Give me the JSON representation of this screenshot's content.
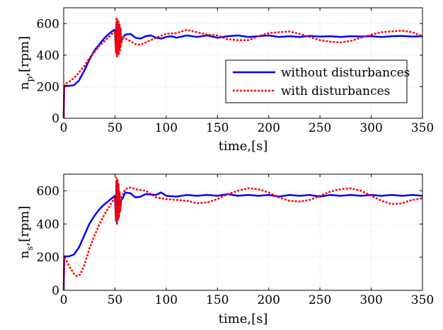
{
  "chart_data": [
    {
      "type": "line",
      "xlabel": "time,[s]",
      "ylabel": {
        "main": "n",
        "sub": "p",
        "rest": ",[rpm]"
      },
      "xlim": [
        0,
        350
      ],
      "ylim": [
        0,
        700
      ],
      "xticks": [
        0,
        50,
        100,
        150,
        200,
        250,
        300,
        350
      ],
      "yticks": [
        0,
        200,
        400,
        600
      ],
      "grid": true,
      "legend": {
        "position": "right",
        "entries": [
          "without disturbances",
          "with disturbances"
        ]
      },
      "series": [
        {
          "name": "without disturbances",
          "color": "#0000ff",
          "style": "solid",
          "x": [
            0,
            0.5,
            1,
            5,
            10,
            15,
            20,
            25,
            30,
            35,
            40,
            45,
            48,
            50,
            51,
            51.5,
            52,
            52.5,
            53,
            53.5,
            54,
            54.5,
            55,
            55.5,
            56,
            58,
            60,
            65,
            70,
            75,
            80,
            85,
            90,
            95,
            100,
            105,
            110,
            120,
            130,
            140,
            150,
            160,
            170,
            180,
            190,
            200,
            210,
            220,
            230,
            240,
            250,
            260,
            270,
            280,
            290,
            300,
            310,
            320,
            330,
            340,
            350
          ],
          "y": [
            0,
            200,
            205,
            205,
            210,
            240,
            300,
            370,
            430,
            470,
            510,
            540,
            555,
            560,
            430,
            600,
            420,
            610,
            430,
            590,
            440,
            580,
            460,
            560,
            490,
            510,
            530,
            535,
            510,
            505,
            520,
            525,
            510,
            505,
            515,
            520,
            510,
            525,
            515,
            525,
            510,
            520,
            525,
            515,
            520,
            525,
            515,
            520,
            515,
            522,
            518,
            520,
            515,
            520,
            518,
            520,
            515,
            520,
            522,
            518,
            520
          ]
        },
        {
          "name": "with disturbances",
          "color": "#ff0000",
          "style": "dotted",
          "x": [
            0,
            0.5,
            1,
            5,
            10,
            15,
            20,
            25,
            30,
            35,
            40,
            45,
            48,
            50,
            51,
            51.5,
            52,
            52.5,
            53,
            53.5,
            54,
            54.5,
            55,
            55.5,
            56,
            58,
            60,
            65,
            70,
            75,
            80,
            90,
            100,
            110,
            120,
            130,
            140,
            150,
            160,
            170,
            180,
            190,
            200,
            210,
            220,
            230,
            240,
            250,
            260,
            270,
            280,
            290,
            300,
            310,
            320,
            330,
            340,
            350
          ],
          "y": [
            0,
            210,
            215,
            230,
            255,
            290,
            330,
            380,
            420,
            460,
            490,
            520,
            540,
            550,
            410,
            640,
            390,
            630,
            400,
            620,
            410,
            600,
            430,
            570,
            460,
            520,
            505,
            490,
            470,
            465,
            480,
            510,
            535,
            540,
            560,
            545,
            530,
            525,
            500,
            495,
            495,
            520,
            540,
            545,
            550,
            535,
            515,
            495,
            485,
            480,
            490,
            510,
            530,
            545,
            550,
            555,
            545,
            520
          ]
        }
      ]
    },
    {
      "type": "line",
      "xlabel": "time,[s]",
      "ylabel": {
        "main": "n",
        "sub": "s",
        "rest": ",[rpm]"
      },
      "xlim": [
        0,
        350
      ],
      "ylim": [
        0,
        700
      ],
      "xticks": [
        0,
        50,
        100,
        150,
        200,
        250,
        300,
        350
      ],
      "yticks": [
        0,
        200,
        400,
        600
      ],
      "grid": true,
      "series": [
        {
          "name": "without disturbances",
          "color": "#0000ff",
          "style": "solid",
          "x": [
            0,
            0.5,
            1,
            5,
            10,
            15,
            20,
            25,
            30,
            35,
            40,
            45,
            48,
            50,
            51,
            51.5,
            52,
            52.5,
            53,
            53.5,
            54,
            54.5,
            55,
            56,
            58,
            60,
            65,
            70,
            75,
            80,
            90,
            95,
            100,
            110,
            120,
            130,
            140,
            150,
            160,
            170,
            180,
            190,
            200,
            210,
            220,
            230,
            240,
            250,
            260,
            270,
            280,
            290,
            300,
            310,
            320,
            330,
            340,
            350
          ],
          "y": [
            0,
            200,
            205,
            205,
            215,
            260,
            330,
            400,
            450,
            490,
            520,
            545,
            560,
            570,
            420,
            650,
            410,
            640,
            430,
            620,
            450,
            590,
            480,
            540,
            560,
            590,
            585,
            560,
            565,
            580,
            575,
            590,
            570,
            565,
            575,
            570,
            575,
            570,
            580,
            570,
            575,
            570,
            575,
            565,
            575,
            570,
            575,
            565,
            575,
            570,
            575,
            570,
            575,
            570,
            575,
            570,
            575,
            570
          ]
        },
        {
          "name": "with disturbances",
          "color": "#ff0000",
          "style": "dotted",
          "x": [
            0,
            0.5,
            1,
            3,
            6,
            10,
            13,
            16,
            20,
            25,
            30,
            35,
            40,
            45,
            48,
            50,
            51,
            51.5,
            52,
            52.5,
            53,
            53.5,
            54,
            54.5,
            55,
            56,
            58,
            60,
            65,
            70,
            75,
            80,
            90,
            100,
            110,
            120,
            130,
            140,
            150,
            160,
            170,
            180,
            190,
            200,
            210,
            220,
            230,
            240,
            250,
            260,
            270,
            280,
            290,
            300,
            310,
            320,
            330,
            340,
            350
          ],
          "y": [
            0,
            190,
            195,
            175,
            140,
            100,
            85,
            95,
            150,
            250,
            330,
            400,
            460,
            510,
            540,
            560,
            420,
            680,
            400,
            670,
            420,
            640,
            440,
            600,
            470,
            560,
            580,
            610,
            620,
            610,
            605,
            600,
            560,
            550,
            545,
            540,
            525,
            530,
            550,
            580,
            600,
            615,
            610,
            590,
            560,
            540,
            535,
            545,
            570,
            595,
            610,
            615,
            600,
            570,
            540,
            520,
            525,
            545,
            555
          ]
        }
      ]
    }
  ]
}
